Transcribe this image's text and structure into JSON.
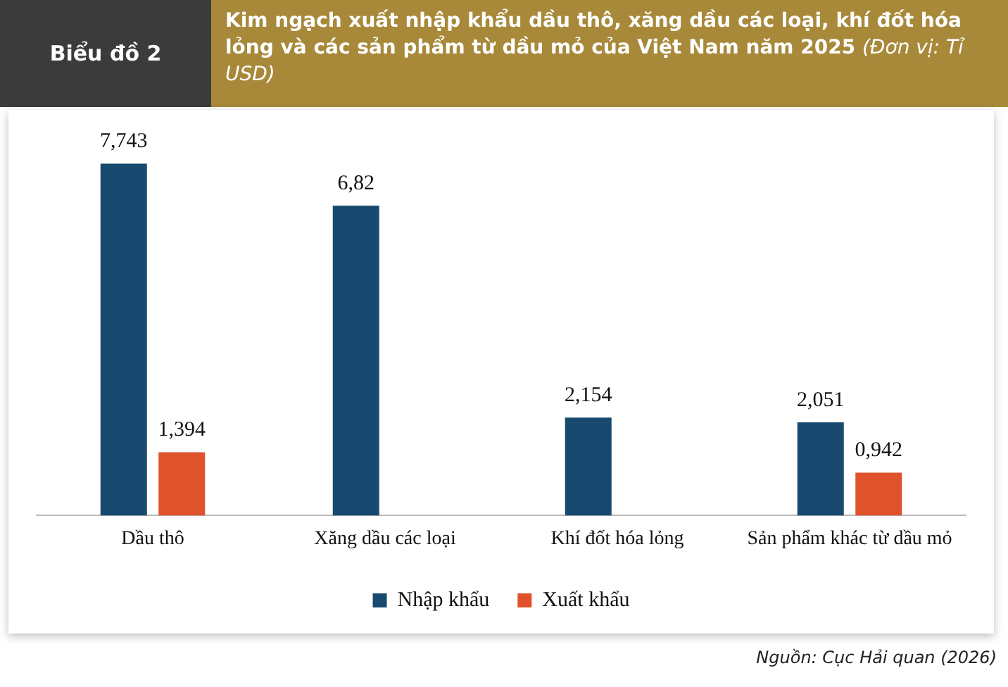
{
  "chart_data": {
    "type": "bar",
    "title": "Kim ngạch xuất nhập khẩu dầu thô, xăng dầu các loại, khí đốt hóa lỏng và các sản phẩm từ dầu mỏ của Việt Nam năm 2025",
    "subtitle": "(Đơn vị: Tỉ USD)",
    "annotations": [
      "Biểu đồ 2",
      "Nguồn: Cục Hải quan (2026)"
    ],
    "categories": [
      "Dầu thô",
      "Xăng dầu các loại",
      "Khí đốt hóa lỏng",
      "Sản phẩm khác từ dầu mỏ"
    ],
    "series": [
      {
        "name": "Nhập khẩu",
        "color": "#174a6e",
        "values": [
          7.743,
          6.82,
          2.154,
          2.051
        ],
        "value_labels": [
          "7,743",
          "6,82",
          "2,154",
          "2,051"
        ]
      },
      {
        "name": "Xuất khẩu",
        "color": "#e0522b",
        "values": [
          1.394,
          null,
          null,
          0.942
        ],
        "value_labels": [
          "1,394",
          null,
          null,
          "0,942"
        ]
      }
    ],
    "grid": false,
    "legend": "bottom",
    "tick_labels": "x"
  }
}
